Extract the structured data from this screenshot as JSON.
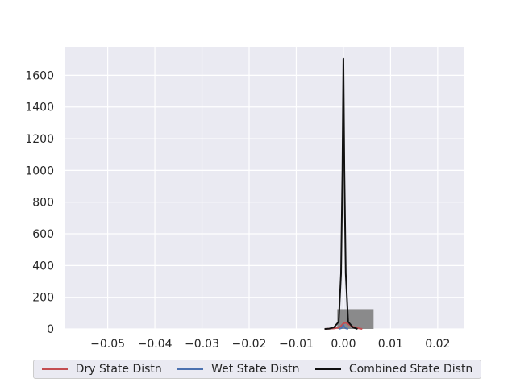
{
  "chart_data": {
    "type": "line",
    "title": "",
    "xlabel": "",
    "ylabel": "",
    "xlim": [
      -0.059,
      0.0255
    ],
    "ylim": [
      0,
      1780
    ],
    "x_ticks": [
      -0.05,
      -0.04,
      -0.03,
      -0.02,
      -0.01,
      0.0,
      0.01,
      0.02
    ],
    "x_tick_labels": [
      "−0.05",
      "−0.04",
      "−0.03",
      "−0.02",
      "−0.01",
      "0.00",
      "0.01",
      "0.02"
    ],
    "y_ticks": [
      0,
      200,
      400,
      600,
      800,
      1000,
      1200,
      1400,
      1600
    ],
    "y_tick_labels": [
      "0",
      "200",
      "400",
      "600",
      "800",
      "1000",
      "1200",
      "1400",
      "1600"
    ],
    "grid": true,
    "legend_position": "bottom",
    "histogram": {
      "bin_start": -0.0013,
      "bin_end": 0.0064,
      "height": 125,
      "color": "#808080"
    },
    "series": [
      {
        "name": "Dry State Distn",
        "color": "#c44e52",
        "x": [
          -0.004,
          -0.002,
          -0.001,
          -0.0005,
          0.0,
          0.0005,
          0.001,
          0.002,
          0.003,
          0.004
        ],
        "y": [
          0,
          3,
          8,
          18,
          35,
          40,
          30,
          15,
          5,
          0
        ]
      },
      {
        "name": "Wet State Distn",
        "color": "#4c72b0",
        "x": [
          -0.001,
          -0.0005,
          -0.0002,
          0.0,
          0.0002,
          0.0005,
          0.001
        ],
        "y": [
          0,
          4,
          12,
          25,
          12,
          4,
          0
        ]
      },
      {
        "name": "Combined State Distn",
        "color": "#111111",
        "x": [
          -0.004,
          -0.003,
          -0.002,
          -0.001,
          -0.0005,
          -0.0002,
          0.0,
          0.0002,
          0.0005,
          0.001,
          0.002,
          0.003
        ],
        "y": [
          0,
          2,
          10,
          45,
          350,
          1000,
          1705,
          1000,
          350,
          45,
          10,
          0
        ]
      }
    ]
  }
}
